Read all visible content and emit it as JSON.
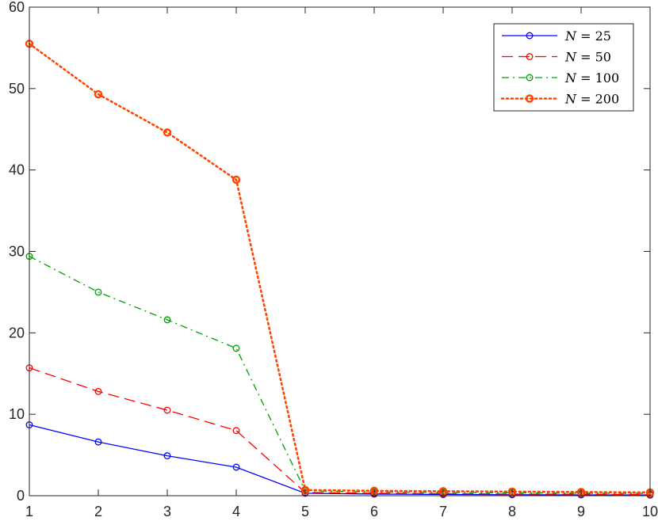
{
  "chart_data": {
    "type": "line",
    "title": "",
    "xlabel": "",
    "ylabel": "",
    "x": [
      1,
      2,
      3,
      4,
      5,
      6,
      7,
      8,
      9,
      10
    ],
    "xlim": [
      1,
      10
    ],
    "ylim": [
      0,
      60
    ],
    "xticks": [
      "1",
      "2",
      "3",
      "4",
      "5",
      "6",
      "7",
      "8",
      "9",
      "10"
    ],
    "yticks": [
      "0",
      "10",
      "20",
      "30",
      "40",
      "50",
      "60"
    ],
    "grid": false,
    "legend_position": "top-right",
    "series": [
      {
        "name": "N = 25",
        "legend": {
          "var": "N",
          "rest": " = 25"
        },
        "color": "#0000ff",
        "dash": "solid",
        "values": [
          8.7,
          6.6,
          4.9,
          3.5,
          0.3,
          0.2,
          0.15,
          0.12,
          0.1,
          0.08
        ]
      },
      {
        "name": "N = 50",
        "legend": {
          "var": "N",
          "rest": " = 50"
        },
        "color": "#ff0000",
        "dash": "dashed",
        "values": [
          15.7,
          12.8,
          10.5,
          8.0,
          0.4,
          0.3,
          0.25,
          0.2,
          0.18,
          0.15
        ]
      },
      {
        "name": "N = 100",
        "legend": {
          "var": "N",
          "rest": " = 100"
        },
        "color": "#00a000",
        "dash": "dashdot",
        "values": [
          29.4,
          25.0,
          21.6,
          18.1,
          0.6,
          0.45,
          0.4,
          0.35,
          0.3,
          0.28
        ]
      },
      {
        "name": "N = 200",
        "legend": {
          "var": "N",
          "rest": " = 200"
        },
        "color": "#ff4500",
        "dash": "dotted",
        "values": [
          55.5,
          49.3,
          44.6,
          38.8,
          0.7,
          0.6,
          0.55,
          0.5,
          0.45,
          0.4
        ]
      }
    ]
  }
}
